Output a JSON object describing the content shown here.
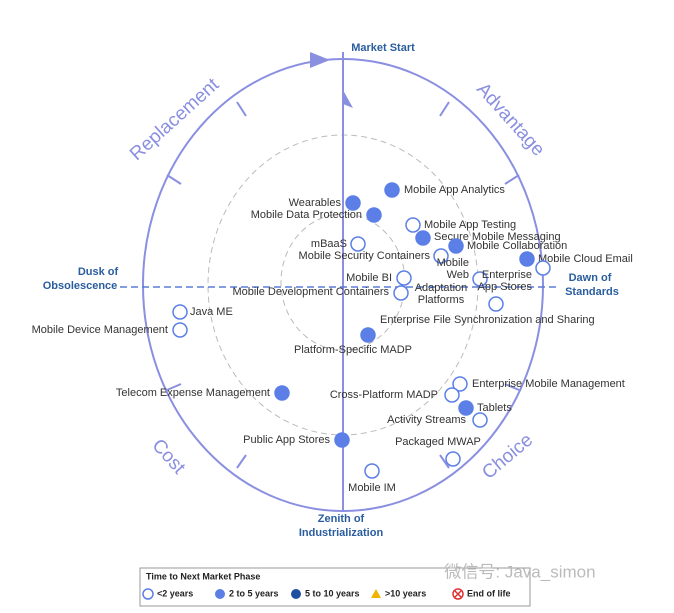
{
  "axes": {
    "top": "Market Start",
    "left": [
      "Dusk of",
      "Obsolescence"
    ],
    "right": [
      "Dawn of",
      "Standards"
    ],
    "bottom": [
      "Zenith of",
      "Industrialization"
    ]
  },
  "phases": [
    "Replacement",
    "Advantage",
    "Cost",
    "Choice"
  ],
  "nodes": [
    {
      "label": [
        "Mobile App Analytics"
      ]
    },
    {
      "label": [
        "Wearables"
      ]
    },
    {
      "label": [
        "Mobile Data Protection"
      ]
    },
    {
      "label": [
        "Mobile App Testing"
      ]
    },
    {
      "label": [
        "Secure Mobile Messaging"
      ]
    },
    {
      "label": [
        "Mobile Collaboration"
      ]
    },
    {
      "label": [
        "mBaaS"
      ]
    },
    {
      "label": [
        "Mobile Security Containers"
      ]
    },
    {
      "label": [
        "Mobile Cloud Email"
      ]
    },
    {
      "label": [
        "Mobile",
        "Web"
      ]
    },
    {
      "label": [
        "Enterprise",
        "App Stores"
      ]
    },
    {
      "label": [
        "Mobile BI"
      ]
    },
    {
      "label": [
        "Mobile Development Containers"
      ]
    },
    {
      "label": [
        "Adaptation",
        "Platforms"
      ]
    },
    {
      "label": [
        "Enterprise File Synchronization and Sharing"
      ]
    },
    {
      "label": [
        "Java ME"
      ]
    },
    {
      "label": [
        "Mobile Device Management"
      ]
    },
    {
      "label": [
        "Platform-Specific MADP"
      ]
    },
    {
      "label": [
        "Telecom Expense Management"
      ]
    },
    {
      "label": [
        "Enterprise Mobile Management"
      ]
    },
    {
      "label": [
        "Cross-Platform MADP"
      ]
    },
    {
      "label": [
        "Tablets"
      ]
    },
    {
      "label": [
        "Activity Streams"
      ]
    },
    {
      "label": [
        "Public App Stores"
      ]
    },
    {
      "label": [
        "Packaged MWAP"
      ]
    },
    {
      "label": [
        "Mobile IM"
      ]
    }
  ],
  "legend": {
    "title": "Time to Next Market Phase",
    "items": [
      "<2 years",
      "2 to 5 years",
      "5 to 10 years",
      ">10 years",
      "End of life"
    ]
  },
  "watermark": "微信号: Java_simon"
}
